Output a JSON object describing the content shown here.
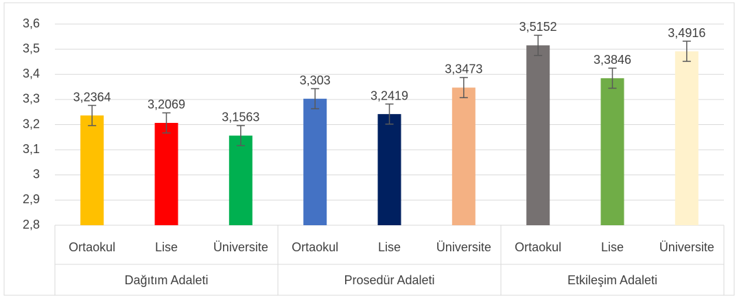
{
  "chart_data": {
    "type": "bar",
    "categories": [
      "Ortaokul",
      "Lise",
      "Üniversite",
      "Ortaokul",
      "Lise",
      "Üniversite",
      "Ortaokul",
      "Lise",
      "Üniversite"
    ],
    "groups": [
      "Dağıtım Adaleti",
      "Prosedür Adaleti",
      "Etkileşim Adaleti"
    ],
    "values": [
      3.2364,
      3.2069,
      3.1563,
      3.303,
      3.2419,
      3.3473,
      3.5152,
      3.3846,
      3.4916
    ],
    "value_labels": [
      "3,2364",
      "3,2069",
      "3,1563",
      "3,303",
      "3,2419",
      "3,3473",
      "3,5152",
      "3,3846",
      "3,4916"
    ],
    "errors": [
      0.04,
      0.04,
      0.04,
      0.04,
      0.04,
      0.04,
      0.04,
      0.04,
      0.04
    ],
    "colors": [
      "#ffc000",
      "#ff0000",
      "#00b050",
      "#4472c4",
      "#002060",
      "#f4b183",
      "#767171",
      "#70ad47",
      "#fff2cc"
    ],
    "ylim": [
      2.8,
      3.6
    ],
    "yticks": [
      {
        "value": 2.8,
        "label": "2,8"
      },
      {
        "value": 2.9,
        "label": "2,9"
      },
      3,
      {
        "value": 3.1,
        "label": "3,1"
      },
      {
        "value": 3.2,
        "label": "3,2"
      },
      {
        "value": 3.3,
        "label": "3,3"
      },
      {
        "value": 3.4,
        "label": "3,4"
      },
      {
        "value": 3.5,
        "label": "3,5"
      },
      {
        "value": 3.6,
        "label": "3,6"
      }
    ],
    "grid": true
  }
}
